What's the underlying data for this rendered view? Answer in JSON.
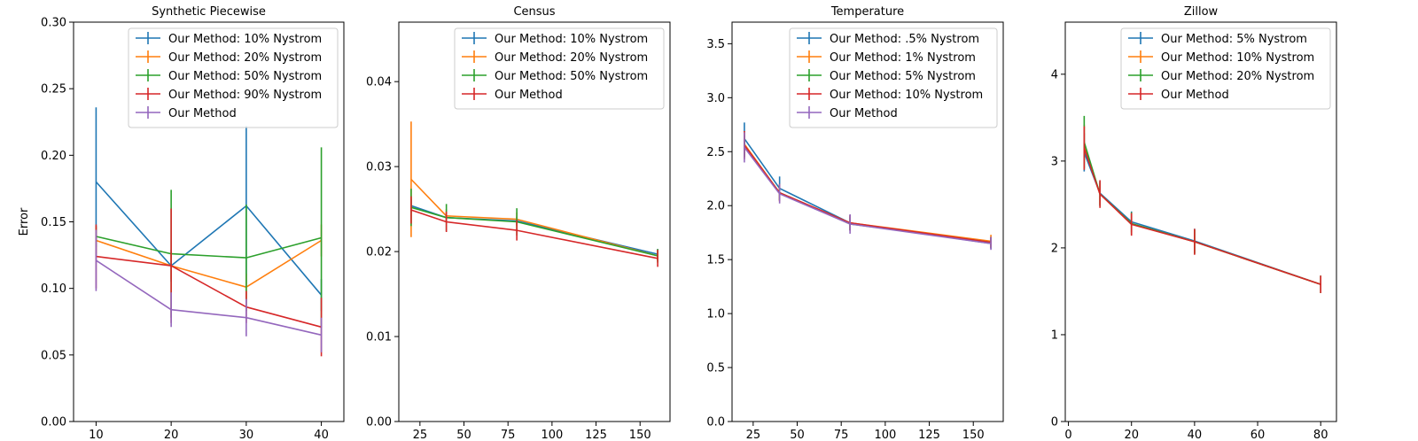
{
  "chart_data": [
    {
      "type": "line",
      "title": "Synthetic Piecewise",
      "ylabel": "Error",
      "xlabel": "",
      "xlim": [
        7,
        43
      ],
      "ylim": [
        0,
        0.3
      ],
      "xticks": [
        "10",
        "20",
        "30",
        "40"
      ],
      "xtick_values": [
        10,
        20,
        30,
        40
      ],
      "yticks": [
        "0.00",
        "0.05",
        "0.10",
        "0.15",
        "0.20",
        "0.25",
        "0.30"
      ],
      "ytick_values": [
        0,
        0.05,
        0.1,
        0.15,
        0.2,
        0.25,
        0.3
      ],
      "legend_position": "top-right",
      "x": [
        10,
        20,
        30,
        40
      ],
      "series": [
        {
          "name": "Our Method: 10% Nystrom",
          "color": "#1f77b4",
          "values": [
            0.18,
            0.117,
            0.162,
            0.095
          ],
          "err": [
            0.056,
            0.012,
            0.06,
            0.012
          ]
        },
        {
          "name": "Our Method: 20% Nystrom",
          "color": "#ff7f0e",
          "values": [
            0.136,
            0.117,
            0.101,
            0.136
          ],
          "err": [
            0.01,
            0.01,
            0.01,
            0.012
          ]
        },
        {
          "name": "Our Method: 50% Nystrom",
          "color": "#2ca02c",
          "values": [
            0.139,
            0.126,
            0.123,
            0.138
          ],
          "err": [
            0.008,
            0.048,
            0.04,
            0.068
          ]
        },
        {
          "name": "Our Method: 90% Nystrom",
          "color": "#d62728",
          "values": [
            0.124,
            0.117,
            0.086,
            0.071
          ],
          "err": [
            0.024,
            0.043,
            0.012,
            0.022
          ]
        },
        {
          "name": "Our Method",
          "color": "#9467bd",
          "values": [
            0.121,
            0.084,
            0.078,
            0.065
          ],
          "err": [
            0.023,
            0.013,
            0.014,
            0.013
          ]
        }
      ]
    },
    {
      "type": "line",
      "title": "Census",
      "ylabel": "",
      "xlabel": "",
      "xlim": [
        13,
        167
      ],
      "ylim": [
        0,
        0.047
      ],
      "xticks": [
        "25",
        "50",
        "75",
        "100",
        "125",
        "150"
      ],
      "xtick_values": [
        25,
        50,
        75,
        100,
        125,
        150
      ],
      "yticks": [
        "0.00",
        "0.01",
        "0.02",
        "0.03",
        "0.04"
      ],
      "ytick_values": [
        0,
        0.01,
        0.02,
        0.03,
        0.04
      ],
      "legend_position": "top-right",
      "x": [
        20,
        40,
        80,
        160
      ],
      "series": [
        {
          "name": "Our Method: 10% Nystrom",
          "color": "#1f77b4",
          "values": [
            0.0254,
            0.024,
            0.0236,
            0.0197
          ],
          "err": [
            0.0008,
            0.0005,
            0.0005,
            0.0006
          ]
        },
        {
          "name": "Our Method: 20% Nystrom",
          "color": "#ff7f0e",
          "values": [
            0.0285,
            0.0242,
            0.0238,
            0.0195
          ],
          "err": [
            0.0068,
            0.0008,
            0.0008,
            0.0006
          ]
        },
        {
          "name": "Our Method: 50% Nystrom",
          "color": "#2ca02c",
          "values": [
            0.0252,
            0.024,
            0.0235,
            0.0195
          ],
          "err": [
            0.0022,
            0.0016,
            0.0016,
            0.0008
          ]
        },
        {
          "name": "Our Method",
          "color": "#d62728",
          "values": [
            0.0249,
            0.0235,
            0.0225,
            0.0192
          ],
          "err": [
            0.0016,
            0.0012,
            0.0012,
            0.001
          ]
        }
      ]
    },
    {
      "type": "line",
      "title": "Temperature",
      "ylabel": "",
      "xlabel": "",
      "xlim": [
        13,
        167
      ],
      "ylim": [
        0,
        3.7
      ],
      "xticks": [
        "25",
        "50",
        "75",
        "100",
        "125",
        "150"
      ],
      "xtick_values": [
        25,
        50,
        75,
        100,
        125,
        150
      ],
      "yticks": [
        "0.0",
        "0.5",
        "1.0",
        "1.5",
        "2.0",
        "2.5",
        "3.0",
        "3.5"
      ],
      "ytick_values": [
        0,
        0.5,
        1.0,
        1.5,
        2.0,
        2.5,
        3.0,
        3.5
      ],
      "legend_position": "top-right",
      "x": [
        20,
        40,
        80,
        160
      ],
      "series": [
        {
          "name": "Our Method: .5% Nystrom",
          "color": "#1f77b4",
          "values": [
            2.62,
            2.16,
            1.84,
            1.65
          ],
          "err": [
            0.15,
            0.11,
            0.07,
            0.05
          ]
        },
        {
          "name": "Our Method: 1% Nystrom",
          "color": "#ff7f0e",
          "values": [
            2.57,
            2.12,
            1.84,
            1.67
          ],
          "err": [
            0.12,
            0.08,
            0.07,
            0.06
          ]
        },
        {
          "name": "Our Method: 5% Nystrom",
          "color": "#2ca02c",
          "values": [
            2.55,
            2.12,
            1.83,
            1.66
          ],
          "err": [
            0.1,
            0.07,
            0.06,
            0.05
          ]
        },
        {
          "name": "Our Method: 10% Nystrom",
          "color": "#d62728",
          "values": [
            2.56,
            2.12,
            1.84,
            1.66
          ],
          "err": [
            0.13,
            0.08,
            0.07,
            0.05
          ]
        },
        {
          "name": "Our Method",
          "color": "#9467bd",
          "values": [
            2.54,
            2.11,
            1.83,
            1.65
          ],
          "err": [
            0.14,
            0.09,
            0.09,
            0.06
          ]
        }
      ]
    },
    {
      "type": "line",
      "title": "Zillow",
      "ylabel": "",
      "xlabel": "",
      "xlim": [
        -1,
        85
      ],
      "ylim": [
        0,
        4.6
      ],
      "xticks": [
        "0",
        "20",
        "40",
        "60",
        "80"
      ],
      "xtick_values": [
        0,
        20,
        40,
        60,
        80
      ],
      "yticks": [
        "0",
        "1",
        "2",
        "3",
        "4"
      ],
      "ytick_values": [
        0,
        1,
        2,
        3,
        4
      ],
      "legend_position": "top-right",
      "x": [
        5,
        10,
        20,
        40,
        80
      ],
      "series": [
        {
          "name": "Our Method: 5% Nystrom",
          "color": "#1f77b4",
          "values": [
            3.1,
            2.63,
            2.3,
            2.08,
            1.58
          ],
          "err": [
            0.22,
            0.14,
            0.12,
            0.14,
            0.1
          ]
        },
        {
          "name": "Our Method: 10% Nystrom",
          "color": "#ff7f0e",
          "values": [
            3.2,
            2.62,
            2.28,
            2.07,
            1.58
          ],
          "err": [
            0.22,
            0.12,
            0.12,
            0.14,
            0.1
          ]
        },
        {
          "name": "Our Method: 20% Nystrom",
          "color": "#2ca02c",
          "values": [
            3.22,
            2.62,
            2.28,
            2.07,
            1.58
          ],
          "err": [
            0.3,
            0.14,
            0.13,
            0.14,
            0.1
          ]
        },
        {
          "name": "Our Method",
          "color": "#d62728",
          "values": [
            3.15,
            2.62,
            2.27,
            2.07,
            1.58
          ],
          "err": [
            0.25,
            0.16,
            0.13,
            0.15,
            0.1
          ]
        }
      ]
    }
  ]
}
